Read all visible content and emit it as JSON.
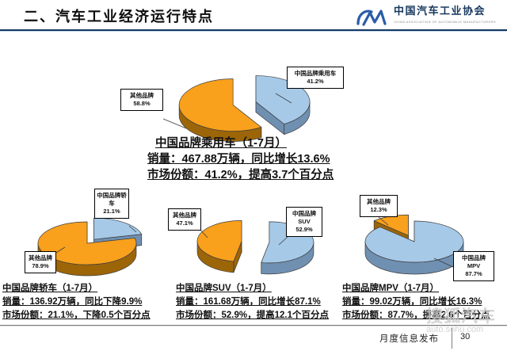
{
  "header": {
    "title": "二、汽车工业经济运行特点",
    "logo": {
      "name": "中国汽车工业协会",
      "subname": "CHINA ASSOCIATION OF AUTOMOBILE MANUFACTURERS"
    }
  },
  "summary": {
    "title": "中国品牌乘用车（1-7月）",
    "sales": "销量：467.88万辆，同比增长13.6%",
    "share": "市场份额：41.2%，提高3.7个百分点"
  },
  "sections": {
    "passenger": {
      "china_label": "中国品牌乘用车",
      "china_pct": "41.2%",
      "other_label": "其他品牌",
      "other_pct": "58.8%"
    },
    "sedan": {
      "title": "中国品牌轿车（1-7月）",
      "sales": "销量：136.92万辆，同比下降9.9%",
      "share": "市场份额：21.1%，下降0.5个百分点",
      "china_label": "中国品牌轿车",
      "china_pct": "21.1%",
      "other_label": "其他品牌",
      "other_pct": "78.9%"
    },
    "suv": {
      "title": "中国品牌SUV（1-7月）",
      "sales": "销量：161.68万辆，同比增长87.1%",
      "share": "市场份额：52.9%，提高12.1个百分点",
      "china_label": "中国品牌SUV",
      "china_pct": "52.9%",
      "other_label": "其他品牌",
      "other_pct": "47.1%"
    },
    "mpv": {
      "title": "中国品牌MPV（1-7月）",
      "sales": "销量：99.02万辆，同比增长16.3%",
      "share": "市场份额：87.7%，提高2.6个百分点",
      "china_label": "中国品牌MPV",
      "china_pct": "87.7%",
      "other_label": "其他品牌",
      "other_pct": "12.3%"
    }
  },
  "footer": {
    "label": "月度信息发布",
    "page": "30"
  },
  "watermark": {
    "title": "搜狐汽车",
    "url": "auto.sohu.com"
  },
  "colors": {
    "china_top": "#A6C9E8",
    "china_side": "#7090B2",
    "other_top": "#F9A01C",
    "other_side": "#9C6508",
    "title_rule": "#17375E",
    "logo_blue": "#2B5CA8"
  },
  "chart_data": [
    {
      "type": "pie",
      "style": "3d-exploded-pie",
      "title": "中国品牌乘用车（1-7月）",
      "labels": [
        "中国品牌乘用车",
        "其他品牌"
      ],
      "values": [
        41.2,
        58.8
      ],
      "unit": "%",
      "colors": [
        "#A6C9E8",
        "#F9A01C"
      ],
      "exploded_slice": "中国品牌乘用车"
    },
    {
      "type": "pie",
      "style": "3d-exploded-pie",
      "title": "中国品牌轿车（1-7月）",
      "labels": [
        "中国品牌轿车",
        "其他品牌"
      ],
      "values": [
        21.1,
        78.9
      ],
      "unit": "%",
      "colors": [
        "#A6C9E8",
        "#F9A01C"
      ],
      "exploded_slice": "中国品牌轿车"
    },
    {
      "type": "pie",
      "style": "3d-exploded-pie",
      "title": "中国品牌SUV（1-7月）",
      "labels": [
        "中国品牌SUV",
        "其他品牌"
      ],
      "values": [
        52.9,
        47.1
      ],
      "unit": "%",
      "colors": [
        "#A6C9E8",
        "#F9A01C"
      ],
      "exploded_slice": "中国品牌SUV"
    },
    {
      "type": "pie",
      "style": "3d-exploded-pie",
      "title": "中国品牌MPV（1-7月）",
      "labels": [
        "中国品牌MPV",
        "其他品牌"
      ],
      "values": [
        87.7,
        12.3
      ],
      "unit": "%",
      "colors": [
        "#A6C9E8",
        "#F9A01C"
      ],
      "exploded_slice": "其他品牌"
    }
  ]
}
